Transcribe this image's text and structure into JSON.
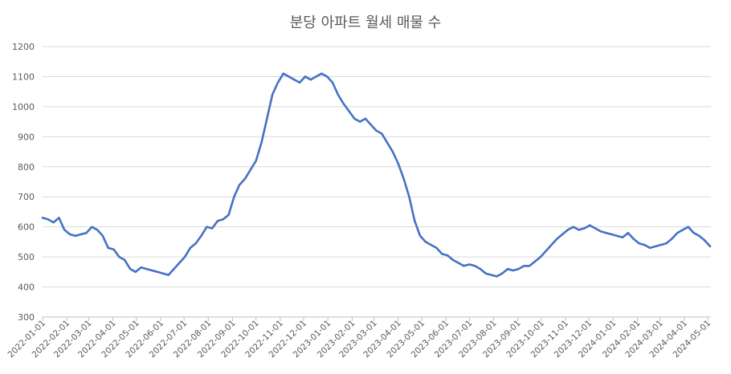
{
  "chart_data": {
    "type": "line",
    "title": "분당 아파트 월세 매물 수",
    "xlabel": "",
    "ylabel": "",
    "ylim": [
      300,
      1200
    ],
    "y_ticks": [
      "300",
      "400",
      "500",
      "600",
      "700",
      "800",
      "900",
      "1000",
      "1100",
      "1200"
    ],
    "x_ticks": [
      "2022-01-01",
      "2022-02-01",
      "2022-03-01",
      "2022-04-01",
      "2022-05-01",
      "2022-06-01",
      "2022-07-01",
      "2022-08-01",
      "2022-09-01",
      "2022-10-01",
      "2022-11-01",
      "2022-12-01",
      "2023-01-01",
      "2023-02-01",
      "2023-03-01",
      "2023-04-01",
      "2023-05-01",
      "2023-06-01",
      "2023-07-01",
      "2023-08-01",
      "2023-09-01",
      "2023-10-01",
      "2023-11-01",
      "2023-12-01",
      "2024-01-01",
      "2024-02-01",
      "2024-03-01",
      "2024-04-01",
      "2024-05-01"
    ],
    "grid": true,
    "legend": "none",
    "line_color": "#4472C4",
    "series": [
      {
        "x": [
          "2022-01-01",
          "2022-01-08",
          "2022-01-15",
          "2022-01-22",
          "2022-01-29",
          "2022-02-05",
          "2022-02-12",
          "2022-02-19",
          "2022-02-26",
          "2022-03-05",
          "2022-03-12",
          "2022-03-19",
          "2022-03-26",
          "2022-04-02",
          "2022-04-09",
          "2022-04-16",
          "2022-04-23",
          "2022-04-30",
          "2022-05-07",
          "2022-05-14",
          "2022-05-21",
          "2022-05-28",
          "2022-06-04",
          "2022-06-11",
          "2022-06-18",
          "2022-06-25",
          "2022-07-02",
          "2022-07-09",
          "2022-07-16",
          "2022-07-23",
          "2022-07-30",
          "2022-08-06",
          "2022-08-13",
          "2022-08-20",
          "2022-08-27",
          "2022-09-03",
          "2022-09-10",
          "2022-09-17",
          "2022-09-24",
          "2022-10-01",
          "2022-10-08",
          "2022-10-15",
          "2022-10-22",
          "2022-10-29",
          "2022-11-05",
          "2022-11-12",
          "2022-11-19",
          "2022-11-26",
          "2022-12-03",
          "2022-12-10",
          "2022-12-17",
          "2022-12-24",
          "2022-12-31",
          "2023-01-07",
          "2023-01-14",
          "2023-01-21",
          "2023-01-28",
          "2023-02-04",
          "2023-02-11",
          "2023-02-18",
          "2023-02-25",
          "2023-03-04",
          "2023-03-11",
          "2023-03-18",
          "2023-03-25",
          "2023-04-01",
          "2023-04-08",
          "2023-04-15",
          "2023-04-22",
          "2023-04-29",
          "2023-05-06",
          "2023-05-13",
          "2023-05-20",
          "2023-05-27",
          "2023-06-03",
          "2023-06-10",
          "2023-06-17",
          "2023-06-24",
          "2023-07-01",
          "2023-07-08",
          "2023-07-15",
          "2023-07-22",
          "2023-07-29",
          "2023-08-05",
          "2023-08-12",
          "2023-08-19",
          "2023-08-26",
          "2023-09-02",
          "2023-09-09",
          "2023-09-16",
          "2023-09-23",
          "2023-09-30",
          "2023-10-07",
          "2023-10-14",
          "2023-10-21",
          "2023-10-28",
          "2023-11-04",
          "2023-11-11",
          "2023-11-18",
          "2023-11-25",
          "2023-12-02",
          "2023-12-09",
          "2023-12-16",
          "2023-12-23",
          "2023-12-30",
          "2024-01-06",
          "2024-01-13",
          "2024-01-20",
          "2024-01-27",
          "2024-02-03",
          "2024-02-10",
          "2024-02-17",
          "2024-02-24",
          "2024-03-02",
          "2024-03-09",
          "2024-03-16",
          "2024-03-23",
          "2024-03-30",
          "2024-04-06",
          "2024-04-13",
          "2024-04-20",
          "2024-04-27",
          "2024-05-04"
        ],
        "values": [
          630,
          625,
          615,
          630,
          590,
          575,
          570,
          575,
          580,
          600,
          590,
          570,
          530,
          525,
          500,
          490,
          460,
          450,
          465,
          460,
          455,
          450,
          445,
          440,
          460,
          480,
          500,
          530,
          545,
          570,
          600,
          595,
          620,
          625,
          640,
          700,
          740,
          760,
          790,
          820,
          880,
          960,
          1040,
          1080,
          1110,
          1100,
          1090,
          1080,
          1100,
          1090,
          1100,
          1110,
          1100,
          1080,
          1040,
          1010,
          985,
          960,
          950,
          960,
          940,
          920,
          910,
          880,
          850,
          810,
          760,
          700,
          620,
          570,
          550,
          540,
          530,
          510,
          505,
          490,
          480,
          470,
          475,
          470,
          460,
          445,
          440,
          435,
          445,
          460,
          455,
          460,
          470,
          470,
          485,
          500,
          520,
          540,
          560,
          575,
          590,
          600,
          590,
          595,
          605,
          595,
          585,
          580,
          575,
          570,
          565,
          580,
          560,
          545,
          540,
          530,
          535,
          540,
          545,
          560,
          580,
          590,
          600,
          580,
          570,
          555,
          535
        ]
      }
    ]
  }
}
